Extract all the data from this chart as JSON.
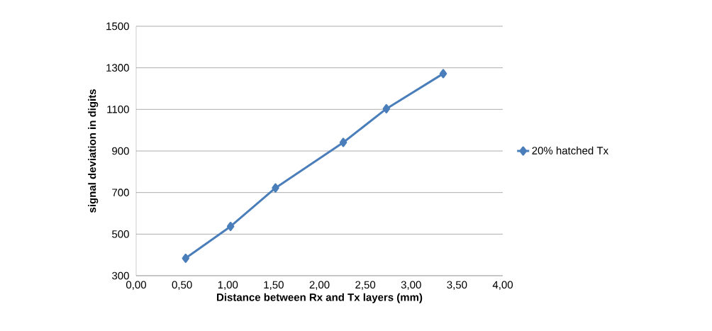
{
  "chart_data": {
    "type": "line",
    "xlabel": "Distance between Rx and Tx layers (mm)",
    "ylabel": "signal deviation in digits",
    "x": [
      0.54,
      1.03,
      1.52,
      2.26,
      2.73,
      3.35
    ],
    "series": [
      {
        "name": "20% hatched Tx",
        "color": "#4a7ebb",
        "values": [
          384,
          537,
          722,
          941,
          1103,
          1272
        ]
      }
    ],
    "xlim": [
      0,
      4
    ],
    "ylim": [
      300,
      1500
    ],
    "xticks": [
      {
        "value": 0,
        "label": "0,00"
      },
      {
        "value": 0.5,
        "label": "0,50"
      },
      {
        "value": 1,
        "label": "1,00"
      },
      {
        "value": 1.5,
        "label": "1,50"
      },
      {
        "value": 2,
        "label": "2,00"
      },
      {
        "value": 2.5,
        "label": "2,50"
      },
      {
        "value": 3,
        "label": "3,00"
      },
      {
        "value": 3.5,
        "label": "3,50"
      },
      {
        "value": 4,
        "label": "4,00"
      }
    ],
    "yticks": [
      300,
      500,
      700,
      900,
      1100,
      1300,
      1500
    ],
    "grid": "y",
    "legend": "right",
    "marker": "diamond",
    "line_style": "solid"
  }
}
